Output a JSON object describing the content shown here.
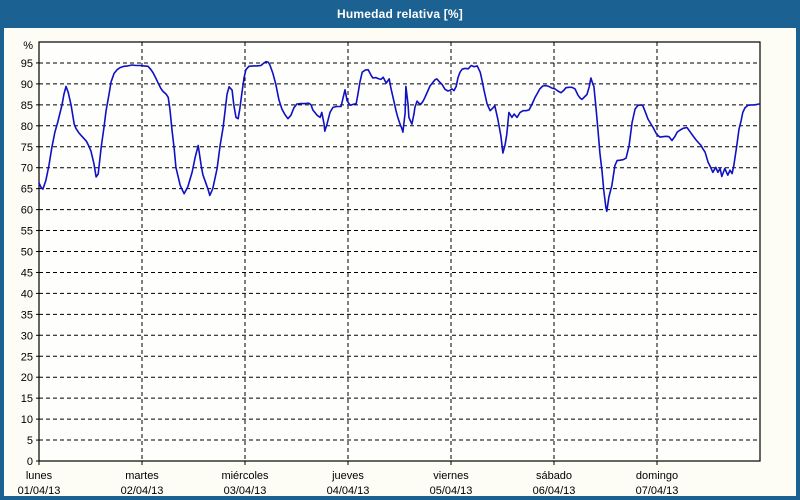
{
  "title": "Humedad relativa [%]",
  "colors": {
    "titlebar_bg": "#1b6292",
    "frame_border": "#20607f",
    "content_bg": "#fdfdf6",
    "plot_bg": "#fefefc",
    "grid": "#000000",
    "axis": "#000000",
    "tick_text": "#000000",
    "line": "#1010c4",
    "title_text": "#ffffff"
  },
  "chart_data": {
    "type": "line",
    "title": "Humedad relativa [%]",
    "ylabel": "%",
    "ylim": [
      0,
      100
    ],
    "ytick_step": 5,
    "yticks": [
      0,
      5,
      10,
      15,
      20,
      25,
      30,
      35,
      40,
      45,
      50,
      55,
      60,
      65,
      70,
      75,
      80,
      85,
      90,
      95
    ],
    "x_unit": "hours since 01/04/13 00:00",
    "xlim": [
      0,
      168
    ],
    "grid": "dashed",
    "legend": "none",
    "day_labels": [
      {
        "name": "lunes",
        "date": "01/04/13"
      },
      {
        "name": "martes",
        "date": "02/04/13"
      },
      {
        "name": "miércoles",
        "date": "03/04/13"
      },
      {
        "name": "jueves",
        "date": "04/04/13"
      },
      {
        "name": "viernes",
        "date": "05/04/13"
      },
      {
        "name": "sábado",
        "date": "06/04/13"
      },
      {
        "name": "domingo",
        "date": "07/04/13"
      }
    ],
    "series": [
      {
        "name": "Humedad relativa",
        "color": "#1010c4",
        "points": [
          [
            0,
            66.4
          ],
          [
            0.5,
            65.3
          ],
          [
            0.9,
            64.9
          ],
          [
            1.6,
            67
          ],
          [
            2.3,
            70.5
          ],
          [
            3,
            74.9
          ],
          [
            3.7,
            78.5
          ],
          [
            4.4,
            81
          ],
          [
            5.4,
            85.2
          ],
          [
            5.8,
            87.5
          ],
          [
            6.3,
            89.4
          ],
          [
            6.8,
            88
          ],
          [
            7.5,
            84.8
          ],
          [
            8.2,
            80.4
          ],
          [
            8.6,
            79.4
          ],
          [
            9.3,
            78.3
          ],
          [
            10,
            77.5
          ],
          [
            11,
            76.4
          ],
          [
            11.7,
            75
          ],
          [
            12.1,
            74
          ],
          [
            12.8,
            71
          ],
          [
            13.3,
            67.8
          ],
          [
            13.8,
            68.5
          ],
          [
            14.5,
            74.9
          ],
          [
            15.2,
            80
          ],
          [
            15.6,
            83.5
          ],
          [
            16.3,
            87.5
          ],
          [
            16.8,
            90.5
          ],
          [
            17.5,
            92.5
          ],
          [
            18.2,
            93.4
          ],
          [
            18.9,
            93.9
          ],
          [
            19.8,
            94.2
          ],
          [
            20.7,
            94.3
          ],
          [
            21.7,
            94.5
          ],
          [
            22.6,
            94.4
          ],
          [
            23.5,
            94.4
          ],
          [
            24.5,
            94.3
          ],
          [
            25.4,
            94.2
          ],
          [
            26.1,
            93.4
          ],
          [
            26.6,
            92.6
          ],
          [
            27.3,
            91.2
          ],
          [
            27.7,
            90.3
          ],
          [
            28.4,
            88.9
          ],
          [
            28.9,
            88.2
          ],
          [
            29.6,
            87.6
          ],
          [
            30.1,
            86.8
          ],
          [
            30.5,
            84
          ],
          [
            31,
            79
          ],
          [
            31.5,
            74.5
          ],
          [
            31.9,
            70.1
          ],
          [
            32.9,
            65.8
          ],
          [
            33.8,
            63.8
          ],
          [
            34.7,
            65.5
          ],
          [
            35.7,
            69
          ],
          [
            36.4,
            72.5
          ],
          [
            37.1,
            75.3
          ],
          [
            37.8,
            70.5
          ],
          [
            38.2,
            68.3
          ],
          [
            38.9,
            66.3
          ],
          [
            39.4,
            64.8
          ],
          [
            39.8,
            63.4
          ],
          [
            40.5,
            65
          ],
          [
            41.5,
            69.8
          ],
          [
            42.2,
            75.3
          ],
          [
            42.9,
            79.6
          ],
          [
            43.3,
            83
          ],
          [
            43.8,
            87.5
          ],
          [
            44.3,
            89.3
          ],
          [
            45,
            88.5
          ],
          [
            45.4,
            85
          ],
          [
            45.9,
            82
          ],
          [
            46.4,
            81.7
          ],
          [
            46.8,
            84
          ],
          [
            47.3,
            88
          ],
          [
            47.8,
            91.5
          ],
          [
            48.2,
            93.4
          ],
          [
            48.9,
            94.2
          ],
          [
            49.9,
            94.3
          ],
          [
            50.8,
            94.3
          ],
          [
            51.7,
            94.4
          ],
          [
            52.4,
            95
          ],
          [
            52.9,
            95.3
          ],
          [
            53.4,
            95.2
          ],
          [
            53.8,
            94.5
          ],
          [
            54.5,
            92.5
          ],
          [
            55.2,
            89.8
          ],
          [
            55.9,
            86.2
          ],
          [
            56.6,
            84
          ],
          [
            57.3,
            82.7
          ],
          [
            58,
            81.7
          ],
          [
            58.7,
            82.5
          ],
          [
            59.4,
            84.3
          ],
          [
            60.1,
            85.2
          ],
          [
            61,
            85.3
          ],
          [
            62,
            85.3
          ],
          [
            62.9,
            85.4
          ],
          [
            63.4,
            85
          ],
          [
            63.8,
            83.8
          ],
          [
            64.8,
            82.5
          ],
          [
            65.5,
            82
          ],
          [
            65.9,
            83.2
          ],
          [
            66.4,
            80.5
          ],
          [
            66.6,
            78.7
          ],
          [
            67.1,
            80.4
          ],
          [
            67.8,
            83.2
          ],
          [
            68.5,
            84.4
          ],
          [
            69.4,
            84.6
          ],
          [
            70.4,
            84.6
          ],
          [
            70.8,
            86.5
          ],
          [
            71.3,
            88.6
          ],
          [
            71.8,
            86
          ],
          [
            72.5,
            84.9
          ],
          [
            73.2,
            85.1
          ],
          [
            73.9,
            85.3
          ],
          [
            74.3,
            87.5
          ],
          [
            74.8,
            90.5
          ],
          [
            75.3,
            92.8
          ],
          [
            76,
            93.3
          ],
          [
            76.7,
            93.4
          ],
          [
            77.4,
            92
          ],
          [
            77.8,
            91.4
          ],
          [
            78.5,
            91.5
          ],
          [
            79.2,
            91.2
          ],
          [
            79.7,
            91.1
          ],
          [
            80.2,
            91.6
          ],
          [
            80.9,
            90.2
          ],
          [
            81.6,
            91.2
          ],
          [
            82,
            89
          ],
          [
            82.5,
            86.7
          ],
          [
            83.2,
            83.5
          ],
          [
            83.6,
            82
          ],
          [
            84.1,
            80.5
          ],
          [
            84.6,
            79.2
          ],
          [
            84.8,
            78.5
          ],
          [
            85.3,
            83
          ],
          [
            85.5,
            89.4
          ],
          [
            86,
            85
          ],
          [
            86.2,
            82
          ],
          [
            86.7,
            80.8
          ],
          [
            86.9,
            80.4
          ],
          [
            87.4,
            83
          ],
          [
            87.6,
            84.4
          ],
          [
            88.1,
            85.9
          ],
          [
            88.5,
            85.4
          ],
          [
            89,
            85.2
          ],
          [
            89.5,
            85.9
          ],
          [
            89.9,
            86.7
          ],
          [
            90.6,
            88.3
          ],
          [
            91.1,
            89.5
          ],
          [
            91.8,
            90.4
          ],
          [
            92.3,
            91
          ],
          [
            92.7,
            91.2
          ],
          [
            93.4,
            90.4
          ],
          [
            93.9,
            89.9
          ],
          [
            94.6,
            88.7
          ],
          [
            95.3,
            88.3
          ],
          [
            95.8,
            88.5
          ],
          [
            96.2,
            88.8
          ],
          [
            96.7,
            88.4
          ],
          [
            97.2,
            89.4
          ],
          [
            97.6,
            91.4
          ],
          [
            98.1,
            92.8
          ],
          [
            98.6,
            93.5
          ],
          [
            99.3,
            93.7
          ],
          [
            100,
            93.6
          ],
          [
            100.7,
            94.4
          ],
          [
            101.4,
            94.1
          ],
          [
            102.1,
            94.3
          ],
          [
            102.8,
            92.8
          ],
          [
            103.2,
            91
          ],
          [
            103.7,
            88.5
          ],
          [
            104.4,
            85.2
          ],
          [
            105.1,
            83.6
          ],
          [
            105.8,
            84.3
          ],
          [
            106.2,
            84.8
          ],
          [
            106.9,
            81.6
          ],
          [
            107.6,
            77.7
          ],
          [
            108.1,
            73.5
          ],
          [
            108.6,
            75.5
          ],
          [
            109,
            78
          ],
          [
            109.5,
            83.2
          ],
          [
            110.2,
            82
          ],
          [
            110.7,
            82.8
          ],
          [
            111.4,
            82
          ],
          [
            112.1,
            83.2
          ],
          [
            112.8,
            83.6
          ],
          [
            113.5,
            83.6
          ],
          [
            114.2,
            83.8
          ],
          [
            114.9,
            85.2
          ],
          [
            115.6,
            86.8
          ],
          [
            116,
            87.5
          ],
          [
            116.7,
            88.8
          ],
          [
            117.4,
            89.5
          ],
          [
            118.1,
            89.6
          ],
          [
            118.8,
            89.4
          ],
          [
            119.5,
            89
          ],
          [
            120.2,
            88.8
          ],
          [
            120.9,
            88.3
          ],
          [
            121.6,
            87.9
          ],
          [
            122.3,
            88.5
          ],
          [
            122.8,
            89.1
          ],
          [
            123.5,
            89.2
          ],
          [
            124.2,
            89.2
          ],
          [
            124.9,
            88.8
          ],
          [
            125.6,
            87.3
          ],
          [
            126.1,
            86.6
          ],
          [
            126.5,
            86.3
          ],
          [
            127.2,
            87
          ],
          [
            127.7,
            87.5
          ],
          [
            128.2,
            89.3
          ],
          [
            128.6,
            91.4
          ],
          [
            129.1,
            89.8
          ],
          [
            129.3,
            89.4
          ],
          [
            129.8,
            84
          ],
          [
            130.2,
            79.5
          ],
          [
            130.7,
            73.5
          ],
          [
            131.2,
            69
          ],
          [
            131.6,
            64.5
          ],
          [
            132.1,
            60.5
          ],
          [
            132.3,
            59.6
          ],
          [
            132.8,
            63
          ],
          [
            133.5,
            65.8
          ],
          [
            134.2,
            70.5
          ],
          [
            134.7,
            71.7
          ],
          [
            135.4,
            71.8
          ],
          [
            136.1,
            71.9
          ],
          [
            136.8,
            72.3
          ],
          [
            137.5,
            75.3
          ],
          [
            138.2,
            80.8
          ],
          [
            138.9,
            84
          ],
          [
            139.6,
            84.9
          ],
          [
            140.3,
            85
          ],
          [
            140.7,
            84.8
          ],
          [
            141.4,
            83
          ],
          [
            141.9,
            81.6
          ],
          [
            142.6,
            80.4
          ],
          [
            143.1,
            79.6
          ],
          [
            143.8,
            78.2
          ],
          [
            144.2,
            77.7
          ],
          [
            144.7,
            77.3
          ],
          [
            145.4,
            77.4
          ],
          [
            146.1,
            77.5
          ],
          [
            146.8,
            77.4
          ],
          [
            147.5,
            76.5
          ],
          [
            148.2,
            77.5
          ],
          [
            148.7,
            78.5
          ],
          [
            149.4,
            79
          ],
          [
            150.1,
            79.4
          ],
          [
            151,
            79.6
          ],
          [
            151.7,
            78.6
          ],
          [
            152.4,
            77.6
          ],
          [
            153.1,
            76.6
          ],
          [
            153.8,
            75.8
          ],
          [
            154.2,
            75.4
          ],
          [
            154.7,
            74.5
          ],
          [
            155.2,
            73.7
          ],
          [
            155.9,
            71.3
          ],
          [
            156.3,
            70.5
          ],
          [
            156.8,
            69.4
          ],
          [
            157,
            68.9
          ],
          [
            157.7,
            70.1
          ],
          [
            158.2,
            68.9
          ],
          [
            158.7,
            69.8
          ],
          [
            159.1,
            67.9
          ],
          [
            159.8,
            69.8
          ],
          [
            160.5,
            68.2
          ],
          [
            161,
            69.4
          ],
          [
            161.5,
            68.6
          ],
          [
            161.9,
            70.5
          ],
          [
            162.6,
            75.3
          ],
          [
            163.1,
            79.2
          ],
          [
            163.6,
            81.2
          ],
          [
            164,
            83.2
          ],
          [
            164.5,
            84.3
          ],
          [
            165.2,
            84.9
          ],
          [
            165.9,
            85
          ],
          [
            166.6,
            85
          ],
          [
            167.3,
            85.1
          ],
          [
            167.8,
            85.2
          ]
        ]
      }
    ]
  }
}
